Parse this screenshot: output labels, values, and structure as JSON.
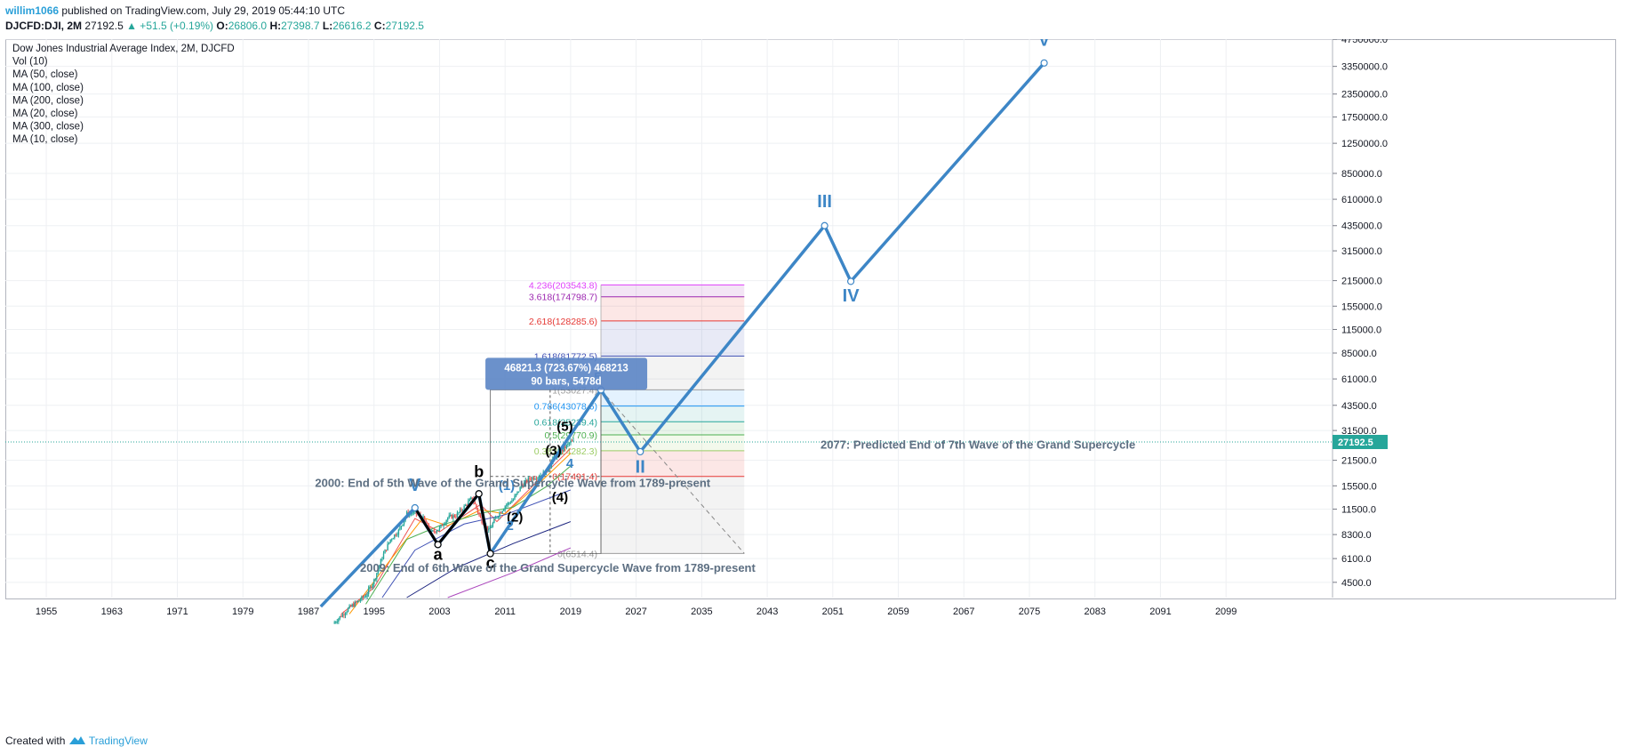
{
  "header": {
    "publisher": "willim1066",
    "published_text": "published on TradingView.com, July 29, 2019 05:44:10 UTC"
  },
  "ohlc": {
    "symbol": "DJCFD:DJI, 2M",
    "last": "27192.5",
    "change": "▲ +51.5 (+0.19%)",
    "o_label": "O:",
    "o": "26806.0",
    "h_label": "H:",
    "h": "27398.7",
    "l_label": "L:",
    "l": "26616.2",
    "c_label": "C:",
    "c": "27192.5"
  },
  "legend": [
    "Dow Jones Industrial Average Index, 2M, DJCFD",
    "Vol (10)",
    "MA (50, close)",
    "MA (100, close)",
    "MA (200, close)",
    "MA (20, close)",
    "MA (300, close)",
    "MA (10, close)"
  ],
  "footer": {
    "created_with": "Created with",
    "brand": "TradingView"
  },
  "colors": {
    "wave": "#3d86c6",
    "abc": "#000000",
    "up": "#26a69a",
    "down": "#ef5350",
    "price_line": "#26a69a"
  },
  "chart_data": {
    "type": "line",
    "title": "Dow Jones Industrial Average Index, 2M, DJCFD",
    "y_scale": "log",
    "ylim": [
      3700,
      4750000
    ],
    "xlim": [
      1950,
      2112
    ],
    "x_ticks": [
      "1955",
      "1963",
      "1971",
      "1979",
      "1987",
      "1995",
      "2003",
      "2011",
      "2019",
      "2027",
      "2035",
      "2043",
      "2051",
      "2059",
      "2067",
      "2075",
      "2083",
      "2091",
      "2099"
    ],
    "y_ticks": [
      "4750000.0",
      "3350000.0",
      "2350000.0",
      "1750000.0",
      "1250000.0",
      "850000.0",
      "610000.0",
      "435000.0",
      "315000.0",
      "215000.0",
      "155000.0",
      "115000.0",
      "85000.0",
      "61000.0",
      "43500.0",
      "31500.0",
      "21500.0",
      "15500.0",
      "11500.0",
      "8300.0",
      "6100.0",
      "4500.0"
    ],
    "current_price": {
      "value": 27192.5,
      "label": "27192.5"
    },
    "grid": true,
    "series": [
      {
        "points": [
          [
            1988.5,
            3300
          ],
          [
            2000,
            11700
          ],
          [
            2002.8,
            7300
          ],
          [
            2007.8,
            14000
          ],
          [
            2009.2,
            6500
          ],
          [
            2022.7,
            53027
          ],
          [
            2027.5,
            24000
          ],
          [
            2050,
            435000
          ],
          [
            2053.2,
            213000
          ],
          [
            2076.8,
            3500000
          ]
        ]
      },
      {
        "points": [
          [
            2000,
            11700
          ],
          [
            2002.8,
            7300
          ],
          [
            2007.8,
            14000
          ],
          [
            2009.2,
            6500
          ]
        ]
      }
    ],
    "wave_labels": [
      {
        "text": "V",
        "x": 2000,
        "y": 14500,
        "color": "wave",
        "size": 20
      },
      {
        "text": "a",
        "x": 2002.8,
        "y": 6000,
        "color": "abc",
        "size": 18
      },
      {
        "text": "b",
        "x": 2007.8,
        "y": 17300,
        "color": "abc",
        "size": 18
      },
      {
        "text": "c",
        "x": 2009.2,
        "y": 5400,
        "color": "abc",
        "size": 18
      },
      {
        "text": "II",
        "x": 2027.5,
        "y": 18400,
        "color": "wave",
        "size": 20
      },
      {
        "text": "III",
        "x": 2050,
        "y": 550000,
        "color": "wave",
        "size": 20
      },
      {
        "text": "IV",
        "x": 2053.2,
        "y": 165000,
        "color": "wave",
        "size": 20
      },
      {
        "text": "V",
        "x": 2076.8,
        "y": 4350000,
        "color": "wave",
        "size": 20
      },
      {
        "text": "(1)",
        "x": 2011.2,
        "y": 14700,
        "color": "wave",
        "size": 15
      },
      {
        "text": "(2)",
        "x": 2012.2,
        "y": 9800,
        "color": "abc",
        "size": 15
      },
      {
        "text": "2",
        "x": 2011.6,
        "y": 8800,
        "color": "wave",
        "size": 15
      },
      {
        "text": "(3)",
        "x": 2016.9,
        "y": 23000,
        "color": "abc",
        "size": 15
      },
      {
        "text": "(4)",
        "x": 2017.7,
        "y": 12700,
        "color": "abc",
        "size": 15
      },
      {
        "text": "(5)",
        "x": 2018.3,
        "y": 31300,
        "color": "abc",
        "size": 15
      },
      {
        "text": "4",
        "x": 2018.9,
        "y": 19500,
        "color": "wave",
        "size": 15
      },
      {
        "text": "5",
        "x": 2022.3,
        "y": 59000,
        "color": "wave",
        "size": 15
      }
    ],
    "fib_levels": [
      {
        "ratio": "4.236",
        "value": 203543.8,
        "label": "4.236(203543.8)",
        "color": "#e040fb"
      },
      {
        "ratio": "3.618",
        "value": 174798.7,
        "label": "3.618(174798.7)",
        "color": "#9c27b0"
      },
      {
        "ratio": "2.618",
        "value": 128285.6,
        "label": "2.618(128285.6)",
        "color": "#e53935"
      },
      {
        "ratio": "1.618",
        "value": 81772.5,
        "label": "1.618(81772.5)",
        "color": "#3f51b5"
      },
      {
        "ratio": "1",
        "value": 53027.4,
        "label": "1(53027.4)",
        "color": "#9e9e9e"
      },
      {
        "ratio": "0.786",
        "value": 43078.6,
        "label": "0.786(43078.6)",
        "color": "#2196f3"
      },
      {
        "ratio": "0.618",
        "value": 35239.4,
        "label": "0.618(35239.4)",
        "color": "#26a69a"
      },
      {
        "ratio": "0.5",
        "value": 29770.9,
        "label": "0.5(29770.9)",
        "color": "#4caf50"
      },
      {
        "ratio": "0.382",
        "value": 24282.3,
        "label": "0.382(24282.3)",
        "color": "#9ccc65"
      },
      {
        "ratio": "0",
        "value": 17491.4,
        "label": "0(17491.4)",
        "color": "#e53935"
      },
      {
        "ratio": "0",
        "value": 6514.4,
        "label": "0(6514.4)",
        "color": "#9e9e9e"
      }
    ],
    "fib_x": [
      2022.7,
      2040.2
    ],
    "measure": {
      "line1": "46821.3 (723.67%) 468213",
      "line2": "90 bars, 5478d"
    },
    "annotations": [
      {
        "text": "2000: End of 5th Wave of the Grand Supercycle Wave from 1789-present",
        "x": 1987.8,
        "y": 15300
      },
      {
        "text": "2009: End of 6th Wave of the Grand Supercycle Wave from 1789-present",
        "x": 1993.3,
        "y": 5150
      },
      {
        "text": "2077: Predicted End of 7th Wave of the Grand Supercycle",
        "x": 2049.5,
        "y": 25000
      }
    ]
  }
}
